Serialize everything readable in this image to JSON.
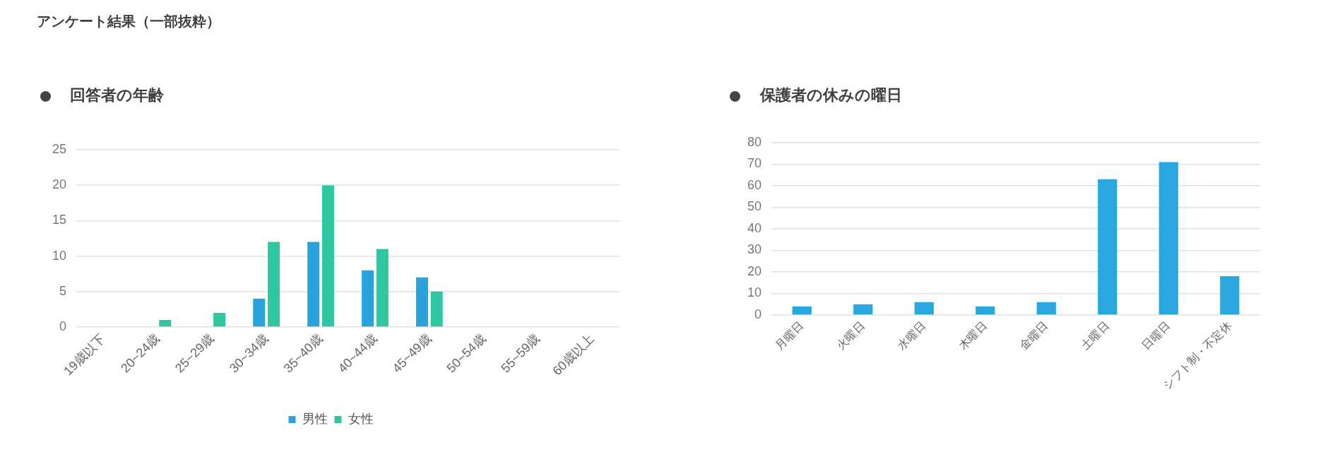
{
  "chart_data": [
    {
      "type": "bar",
      "title": "回答者の年齢",
      "annotations": [
        "アンケート結果（一部抜粋）"
      ],
      "categories": [
        "19歳以下",
        "20~24歳",
        "25~29歳",
        "30~34歳",
        "35~40歳",
        "40~44歳",
        "45~49歳",
        "50~54歳",
        "55~59歳",
        "60歳以上"
      ],
      "series": [
        {
          "name": "男性",
          "color": "#2aa3dc",
          "values": [
            0,
            0,
            0,
            4,
            12,
            8,
            7,
            0,
            0,
            0
          ]
        },
        {
          "name": "女性",
          "color": "#2ec7a1",
          "values": [
            0,
            1,
            2,
            12,
            20,
            11,
            5,
            0,
            0,
            0
          ]
        }
      ],
      "ylim": [
        0,
        25
      ],
      "yticks": [
        0,
        5,
        10,
        15,
        20,
        25
      ],
      "grid": "y",
      "legend": "bottom"
    },
    {
      "type": "bar",
      "title": "保護者の休みの曜日",
      "categories": [
        "月曜日",
        "火曜日",
        "水曜日",
        "木曜日",
        "金曜日",
        "土曜日",
        "日曜日",
        "シフト制・不定休"
      ],
      "values": [
        4,
        5,
        6,
        4,
        6,
        63,
        71,
        18
      ],
      "color": "#29a8e0",
      "ylim": [
        0,
        80
      ],
      "yticks": [
        0,
        10,
        20,
        30,
        40,
        50,
        60,
        70,
        80
      ],
      "grid": "y"
    }
  ]
}
